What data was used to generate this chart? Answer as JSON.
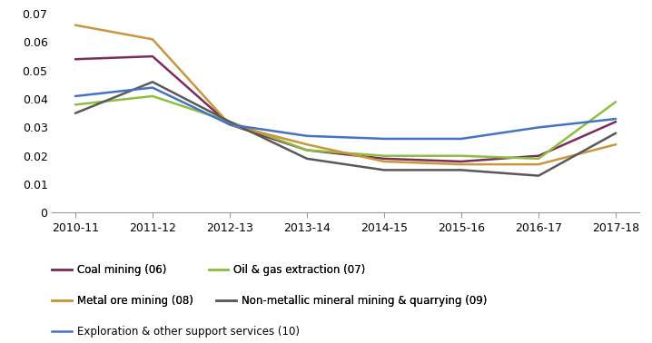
{
  "x_labels": [
    "2010-11",
    "2011-12",
    "2012-13",
    "2013-14",
    "2014-15",
    "2015-16",
    "2016-17",
    "2017-18"
  ],
  "series": {
    "Coal mining (06)": {
      "values": [
        0.054,
        0.055,
        0.031,
        0.022,
        0.019,
        0.018,
        0.02,
        0.032
      ],
      "color": "#7B2D5A",
      "linewidth": 1.8
    },
    "Oil & gas extraction (07)": {
      "values": [
        0.038,
        0.041,
        0.032,
        0.022,
        0.02,
        0.02,
        0.019,
        0.039
      ],
      "color": "#8CBF3F",
      "linewidth": 1.8
    },
    "Metal ore mining (08)": {
      "values": [
        0.066,
        0.061,
        0.031,
        0.024,
        0.018,
        0.017,
        0.017,
        0.024
      ],
      "color": "#C8963C",
      "linewidth": 1.8
    },
    "Non-metallic mineral mining & quarrying (09)": {
      "values": [
        0.035,
        0.046,
        0.032,
        0.019,
        0.015,
        0.015,
        0.013,
        0.028
      ],
      "color": "#595959",
      "linewidth": 1.8
    },
    "Exploration & other support services (10)": {
      "values": [
        0.041,
        0.044,
        0.031,
        0.027,
        0.026,
        0.026,
        0.03,
        0.033
      ],
      "color": "#4472C4",
      "linewidth": 1.8
    }
  },
  "ylim": [
    0,
    0.07
  ],
  "yticks": [
    0,
    0.01,
    0.02,
    0.03,
    0.04,
    0.05,
    0.06,
    0.07
  ],
  "figsize": [
    7.18,
    3.78
  ],
  "dpi": 100,
  "legend_row1": [
    "Coal mining (06)",
    "Oil & gas extraction (07)"
  ],
  "legend_row2": [
    "Metal ore mining (08)",
    "Non-metallic mineral mining & quarrying (09)"
  ],
  "legend_row3": [
    "Exploration & other support services (10)"
  ]
}
